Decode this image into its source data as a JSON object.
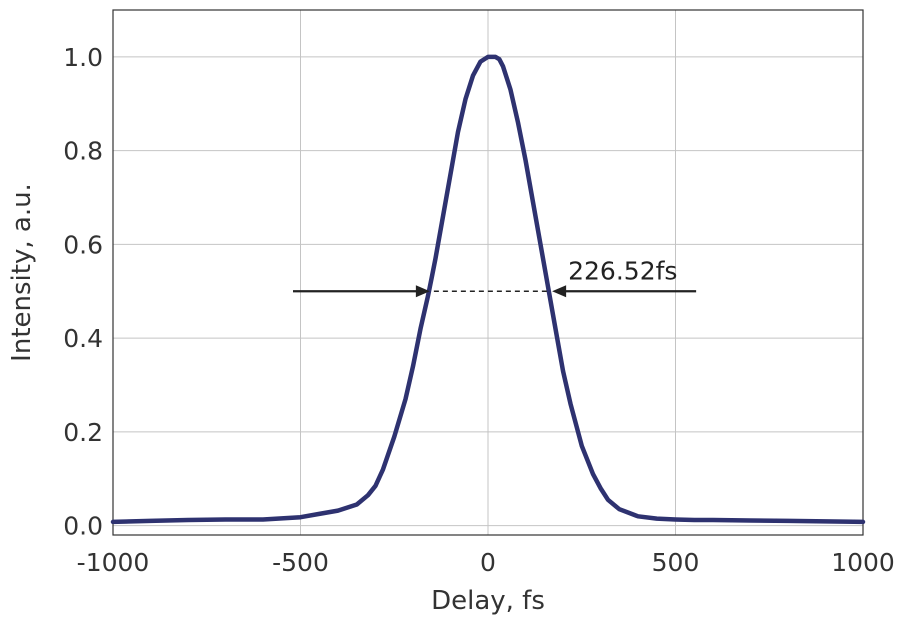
{
  "chart_data": {
    "type": "line",
    "xlabel": "Delay, fs",
    "ylabel": "Intensity, a.u.",
    "xlim": [
      -1000,
      1000
    ],
    "ylim": [
      -0.02,
      1.1
    ],
    "x_ticks": [
      -1000,
      -500,
      0,
      500,
      1000
    ],
    "x_tick_labels": [
      "-1000",
      "-500",
      "0",
      "500",
      "1000"
    ],
    "y_ticks": [
      0.0,
      0.2,
      0.4,
      0.6,
      0.8,
      1.0
    ],
    "y_tick_labels": [
      "0.0",
      "0.2",
      "0.4",
      "0.6",
      "0.8",
      "1.0"
    ],
    "grid": true,
    "series": [
      {
        "color": "#2e3270",
        "x": [
          -1000,
          -900,
          -800,
          -700,
          -600,
          -500,
          -450,
          -400,
          -350,
          -320,
          -300,
          -280,
          -250,
          -220,
          -200,
          -180,
          -160,
          -150,
          -140,
          -120,
          -100,
          -80,
          -60,
          -40,
          -20,
          0,
          10,
          20,
          30,
          40,
          60,
          80,
          100,
          120,
          140,
          160,
          180,
          200,
          220,
          250,
          280,
          300,
          320,
          350,
          400,
          450,
          500,
          550,
          600,
          700,
          800,
          900,
          1000
        ],
        "y": [
          0.008,
          0.01,
          0.012,
          0.013,
          0.013,
          0.018,
          0.025,
          0.032,
          0.045,
          0.065,
          0.085,
          0.12,
          0.19,
          0.27,
          0.34,
          0.42,
          0.49,
          0.53,
          0.57,
          0.66,
          0.75,
          0.84,
          0.91,
          0.96,
          0.99,
          1.0,
          1.0,
          1.0,
          0.995,
          0.98,
          0.93,
          0.86,
          0.78,
          0.69,
          0.6,
          0.51,
          0.42,
          0.33,
          0.26,
          0.17,
          0.11,
          0.08,
          0.055,
          0.035,
          0.02,
          0.015,
          0.013,
          0.012,
          0.012,
          0.011,
          0.01,
          0.009,
          0.008
        ]
      }
    ],
    "annotation": {
      "text": "226.52fs",
      "y": 0.5,
      "fwhm_x": [
        -155,
        171
      ],
      "left_arrow_from_x": -520,
      "right_arrow_from_x": 555
    }
  }
}
